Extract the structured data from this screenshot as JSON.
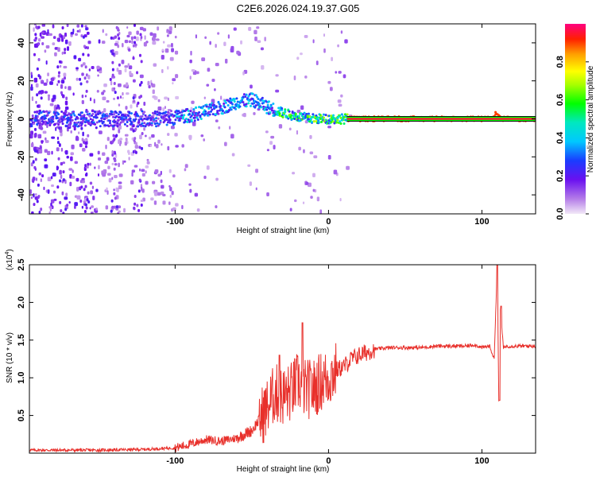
{
  "title": "C2E6.2026.024.19.37.G05",
  "chart_data": [
    {
      "type": "heatmap",
      "xlabel": "Height of straight line (km)",
      "ylabel": "Frequency (Hz)",
      "xlim": [
        -195,
        135
      ],
      "ylim": [
        -50,
        50
      ],
      "xticks": [
        "-100",
        "0",
        "100"
      ],
      "xtick_values": [
        -100,
        0,
        100
      ],
      "yticks": [
        "40",
        "20",
        "0",
        "-20",
        "-40"
      ],
      "ytick_values": [
        40,
        20,
        0,
        -20,
        -40
      ],
      "colorbar": {
        "label": "Normalized spectral amplitude",
        "ticks": [
          "0.0",
          "0.2",
          "0.4",
          "0.6",
          "0.8"
        ],
        "tick_values": [
          0,
          0.2,
          0.4,
          0.6,
          0.8
        ]
      },
      "ridge": {
        "x": [
          -195,
          -170,
          -150,
          -130,
          -110,
          -90,
          -70,
          -60,
          -50,
          -40,
          -30,
          -20,
          -10,
          0,
          10,
          20,
          60,
          100,
          105,
          108,
          112,
          135
        ],
        "y": [
          0,
          0,
          0,
          0,
          0,
          2,
          6,
          9,
          10,
          6,
          3,
          1,
          0,
          0,
          0,
          0,
          0,
          0,
          0,
          3,
          0,
          0
        ]
      }
    },
    {
      "type": "line",
      "xlabel": "Height of straight line (km)",
      "ylabel": "SNR (10 * v/v)",
      "yscale_label": "(x10",
      "yscale_exp": "4",
      "yscale_close": ")",
      "xlim": [
        -195,
        135
      ],
      "ylim": [
        0,
        2.5
      ],
      "xticks": [
        "-100",
        "0",
        "100"
      ],
      "xtick_values": [
        -100,
        0,
        100
      ],
      "yticks": [
        "2.5",
        "2.0",
        "1.5",
        "1.0",
        "0.5"
      ],
      "ytick_values": [
        2.5,
        2.0,
        1.5,
        1.0,
        0.5
      ],
      "series": [
        {
          "name": "SNR",
          "color": "#e8302b",
          "x": [
            -195,
            -150,
            -120,
            -100,
            -90,
            -80,
            -70,
            -60,
            -50,
            -45,
            -40,
            -35,
            -30,
            -25,
            -20,
            -15,
            -10,
            -5,
            0,
            5,
            10,
            15,
            20,
            30,
            40,
            50,
            60,
            70,
            80,
            90,
            95,
            100,
            105,
            108,
            110,
            111,
            112,
            114,
            116,
            120,
            135
          ],
          "y": [
            0.04,
            0.04,
            0.05,
            0.07,
            0.12,
            0.18,
            0.16,
            0.2,
            0.3,
            0.45,
            0.6,
            0.8,
            0.75,
            0.8,
            0.95,
            0.85,
            0.85,
            0.95,
            1.0,
            1.1,
            1.15,
            1.25,
            1.3,
            1.38,
            1.4,
            1.4,
            1.4,
            1.42,
            1.42,
            1.42,
            1.44,
            1.4,
            1.42,
            1.25,
            2.5,
            0.7,
            1.9,
            1.4,
            1.42,
            1.42,
            1.42
          ]
        }
      ],
      "peaks": [
        {
          "x": -32,
          "y": 1.3
        },
        {
          "x": -17,
          "y": 1.73
        },
        {
          "x": 110,
          "y": 2.5
        },
        {
          "x": 111.5,
          "y": 0.7
        },
        {
          "x": 112.5,
          "y": 1.95
        }
      ]
    }
  ]
}
